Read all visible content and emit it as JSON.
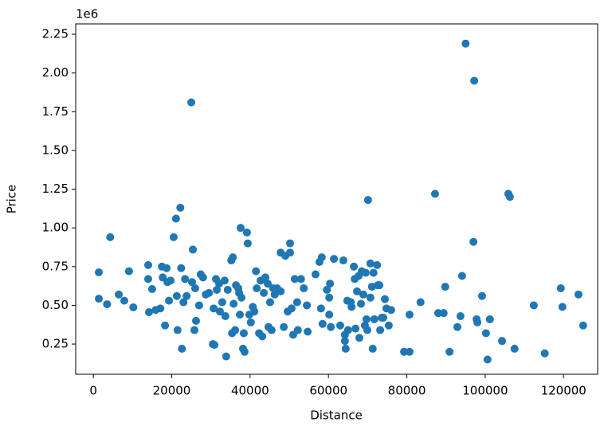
{
  "chart_data": {
    "type": "scatter",
    "xlabel": "Distance",
    "ylabel": "Price",
    "y_offset_text": "1e6",
    "color": "#1f77b4",
    "xlim": [
      -4500,
      128700
    ],
    "xticks": [
      0,
      20000,
      40000,
      60000,
      80000,
      100000,
      120000
    ],
    "ylim": [
      55000,
      2317000
    ],
    "yticks": [
      {
        "value": 250000,
        "label": "0.25"
      },
      {
        "value": 500000,
        "label": "0.50"
      },
      {
        "value": 750000,
        "label": "0.75"
      },
      {
        "value": 1000000,
        "label": "1.00"
      },
      {
        "value": 1250000,
        "label": "1.25"
      },
      {
        "value": 1500000,
        "label": "1.50"
      },
      {
        "value": 1750000,
        "label": "1.75"
      },
      {
        "value": 2000000,
        "label": "2.00"
      },
      {
        "value": 2250000,
        "label": "2.25"
      }
    ],
    "grid": false,
    "x": [
      1400,
      1400,
      4300,
      3500,
      6500,
      7900,
      9100,
      10200,
      14000,
      14000,
      14200,
      15000,
      15900,
      17100,
      17500,
      17700,
      18300,
      18700,
      18900,
      19700,
      19300,
      20500,
      21100,
      21300,
      21500,
      22200,
      22400,
      22600,
      23000,
      23400,
      23800,
      25000,
      25400,
      25200,
      25800,
      26200,
      26000,
      27000,
      27400,
      28000,
      28700,
      29500,
      30500,
      30900,
      30700,
      31300,
      31500,
      32100,
      32300,
      32900,
      33500,
      33700,
      33900,
      34300,
      35200,
      35600,
      35400,
      35800,
      36200,
      36400,
      37000,
      37200,
      37400,
      37600,
      37800,
      38200,
      38400,
      38600,
      39200,
      39400,
      39800,
      40200,
      40700,
      41100,
      41500,
      41700,
      42300,
      42700,
      43100,
      43500,
      43900,
      44500,
      44700,
      45100,
      45500,
      45900,
      46300,
      46900,
      47800,
      47800,
      48600,
      49000,
      49600,
      50200,
      50200,
      50600,
      51000,
      51400,
      52000,
      52200,
      53000,
      53700,
      54500,
      54700,
      56700,
      57700,
      58100,
      58300,
      58500,
      59600,
      60200,
      60200,
      60400,
      60600,
      61400,
      63000,
      63800,
      64200,
      64200,
      64400,
      64800,
      65000,
      65700,
      65900,
      66500,
      66700,
      66900,
      67300,
      67700,
      67900,
      68300,
      68500,
      68900,
      69300,
      69500,
      69700,
      69900,
      70100,
      70700,
      70700,
      71100,
      71300,
      71500,
      71700,
      72400,
      72600,
      73000,
      73200,
      73600,
      74000,
      74400,
      74800,
      75400,
      76000,
      79300,
      80700,
      80700,
      83500,
      87200,
      88000,
      89400,
      89800,
      90900,
      92900,
      93700,
      94100,
      95000,
      97000,
      97200,
      97800,
      98000,
      99200,
      100200,
      100600,
      101200,
      104300,
      105900,
      106300,
      107500,
      112400,
      115200,
      119300,
      119700,
      123800,
      125000
    ],
    "values": [
      713000,
      543000,
      940000,
      507000,
      570000,
      530000,
      720000,
      487000,
      760000,
      670000,
      456000,
      605000,
      470000,
      480000,
      750000,
      680000,
      370000,
      740000,
      650000,
      660000,
      530000,
      940000,
      1060000,
      560000,
      340000,
      1130000,
      740000,
      220000,
      520000,
      670000,
      560000,
      1810000,
      860000,
      650000,
      340000,
      400000,
      610000,
      500000,
      700000,
      680000,
      570000,
      580000,
      250000,
      245000,
      480000,
      670000,
      600000,
      640000,
      460000,
      520000,
      660000,
      430000,
      170000,
      600000,
      790000,
      810000,
      320000,
      510000,
      340000,
      630000,
      610000,
      580000,
      440000,
      1000000,
      550000,
      220000,
      320000,
      200000,
      970000,
      900000,
      440000,
      390000,
      490000,
      460000,
      720000,
      610000,
      320000,
      660000,
      300000,
      580000,
      680000,
      640000,
      360000,
      520000,
      340000,
      610000,
      570000,
      610000,
      840000,
      590000,
      360000,
      820000,
      460000,
      900000,
      840000,
      480000,
      310000,
      670000,
      520000,
      340000,
      670000,
      610000,
      500000,
      330000,
      700000,
      780000,
      480000,
      810000,
      380000,
      600000,
      550000,
      440000,
      640000,
      360000,
      800000,
      370000,
      790000,
      310000,
      270000,
      220000,
      530000,
      340000,
      520000,
      490000,
      750000,
      670000,
      350000,
      590000,
      690000,
      290000,
      510000,
      720000,
      570000,
      370000,
      710000,
      410000,
      340000,
      1180000,
      770000,
      550000,
      620000,
      220000,
      710000,
      410000,
      760000,
      630000,
      630000,
      340000,
      420000,
      420000,
      540000,
      480000,
      370000,
      470000,
      200000,
      200000,
      440000,
      520000,
      1220000,
      450000,
      450000,
      620000,
      200000,
      360000,
      430000,
      690000,
      2190000,
      910000,
      1950000,
      410000,
      390000,
      560000,
      320000,
      150000,
      410000,
      270000,
      1220000,
      1200000,
      220000,
      500000,
      190000,
      610000,
      490000,
      570000,
      370000
    ]
  }
}
